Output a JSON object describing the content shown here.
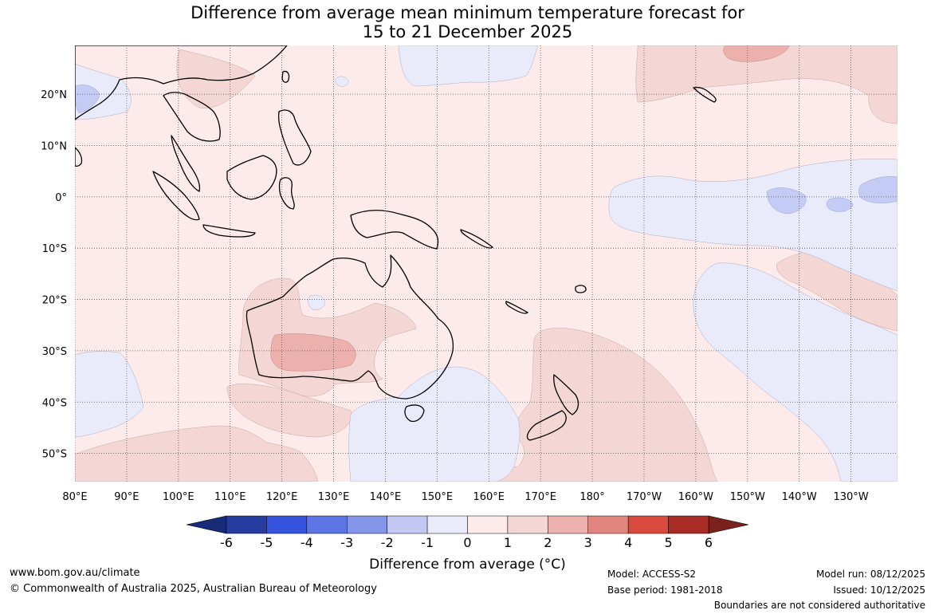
{
  "title": {
    "line1": "Difference from average mean minimum temperature forecast for",
    "line2": "15 to 21 December 2025"
  },
  "map": {
    "lat_labels": [
      "20°N",
      "10°N",
      "0°",
      "10°S",
      "20°S",
      "30°S",
      "40°S",
      "50°S"
    ],
    "lat_values": [
      20,
      10,
      0,
      -10,
      -20,
      -30,
      -40,
      -50
    ],
    "lon_labels": [
      "80°E",
      "90°E",
      "100°E",
      "110°E",
      "120°E",
      "130°E",
      "140°E",
      "150°E",
      "160°E",
      "170°E",
      "180°",
      "170°W",
      "160°W",
      "150°W",
      "140°W",
      "130°W"
    ],
    "lon_values": [
      80,
      90,
      100,
      110,
      120,
      130,
      140,
      150,
      160,
      170,
      180,
      190,
      200,
      210,
      220,
      230
    ],
    "extent": {
      "lon_min": 80,
      "lon_max": 239,
      "lat_min": -55.5,
      "lat_max": 29.5
    },
    "colors": {
      "base_warm": "#fcebea",
      "warm_1_2": "#f4d6d4",
      "warm_2_3": "#ecb1ad",
      "cool_0_1": "#e9ebfb",
      "cool_1_2": "#c4cbf4",
      "coast": "#000000"
    }
  },
  "colorbar": {
    "ticks": [
      "-6",
      "-5",
      "-4",
      "-3",
      "-2",
      "-1",
      "0",
      "1",
      "2",
      "3",
      "4",
      "5",
      "6"
    ],
    "tick_values": [
      -6,
      -5,
      -4,
      -3,
      -2,
      -1,
      0,
      1,
      2,
      3,
      4,
      5,
      6
    ],
    "colors": [
      "#263d9f",
      "#3653dd",
      "#5c74e4",
      "#8496e9",
      "#c2c8f3",
      "#e9ebfb",
      "#fcebea",
      "#f4d6d4",
      "#ecb1ad",
      "#e2847e",
      "#d84a3e",
      "#a82b25"
    ],
    "low_extend_color": "#182b78",
    "high_extend_color": "#7a211c",
    "label": "Difference from average (°C)"
  },
  "footer": {
    "url": "www.bom.gov.au/climate",
    "copyright": "© Commonwealth of Australia 2025, Australian Bureau of Meteorology",
    "model": "Model: ACCESS-S2",
    "base_period": "Base period: 1981-2018",
    "model_run": "Model run: 08/12/2025",
    "issued": "Issued: 10/12/2025",
    "disclaimer": "Boundaries are not considered authoritative"
  }
}
